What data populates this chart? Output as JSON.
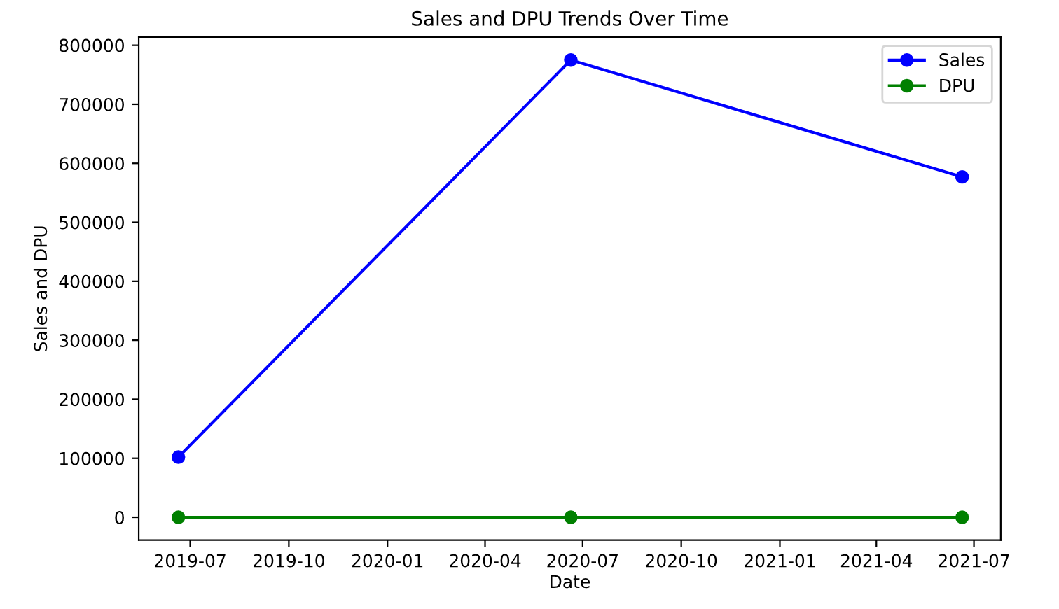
{
  "chart_data": {
    "type": "line",
    "title": "Sales and DPU Trends Over Time",
    "xlabel": "Date",
    "ylabel": "Sales and DPU",
    "x": [
      "2019-06-20",
      "2020-06-20",
      "2021-06-20"
    ],
    "series": [
      {
        "name": "Sales",
        "color": "#0000ff",
        "values": [
          102000,
          775000,
          577000
        ]
      },
      {
        "name": "DPU",
        "color": "#008000",
        "values": [
          0,
          0,
          0
        ]
      }
    ],
    "xlim": [
      "2019-05-14",
      "2021-07-26"
    ],
    "xticks": [
      {
        "value": "2019-07-01",
        "label": "2019-07"
      },
      {
        "value": "2019-10-01",
        "label": "2019-10"
      },
      {
        "value": "2020-01-01",
        "label": "2020-01"
      },
      {
        "value": "2020-04-01",
        "label": "2020-04"
      },
      {
        "value": "2020-07-01",
        "label": "2020-07"
      },
      {
        "value": "2020-10-01",
        "label": "2020-10"
      },
      {
        "value": "2021-01-01",
        "label": "2021-01"
      },
      {
        "value": "2021-04-01",
        "label": "2021-04"
      },
      {
        "value": "2021-07-01",
        "label": "2021-07"
      }
    ],
    "ylim": [
      -38750,
      813750
    ],
    "yticks": [
      0,
      100000,
      200000,
      300000,
      400000,
      500000,
      600000,
      700000,
      800000
    ],
    "grid": false,
    "legend": "top right",
    "marker": "circle",
    "line_style": "solid"
  }
}
